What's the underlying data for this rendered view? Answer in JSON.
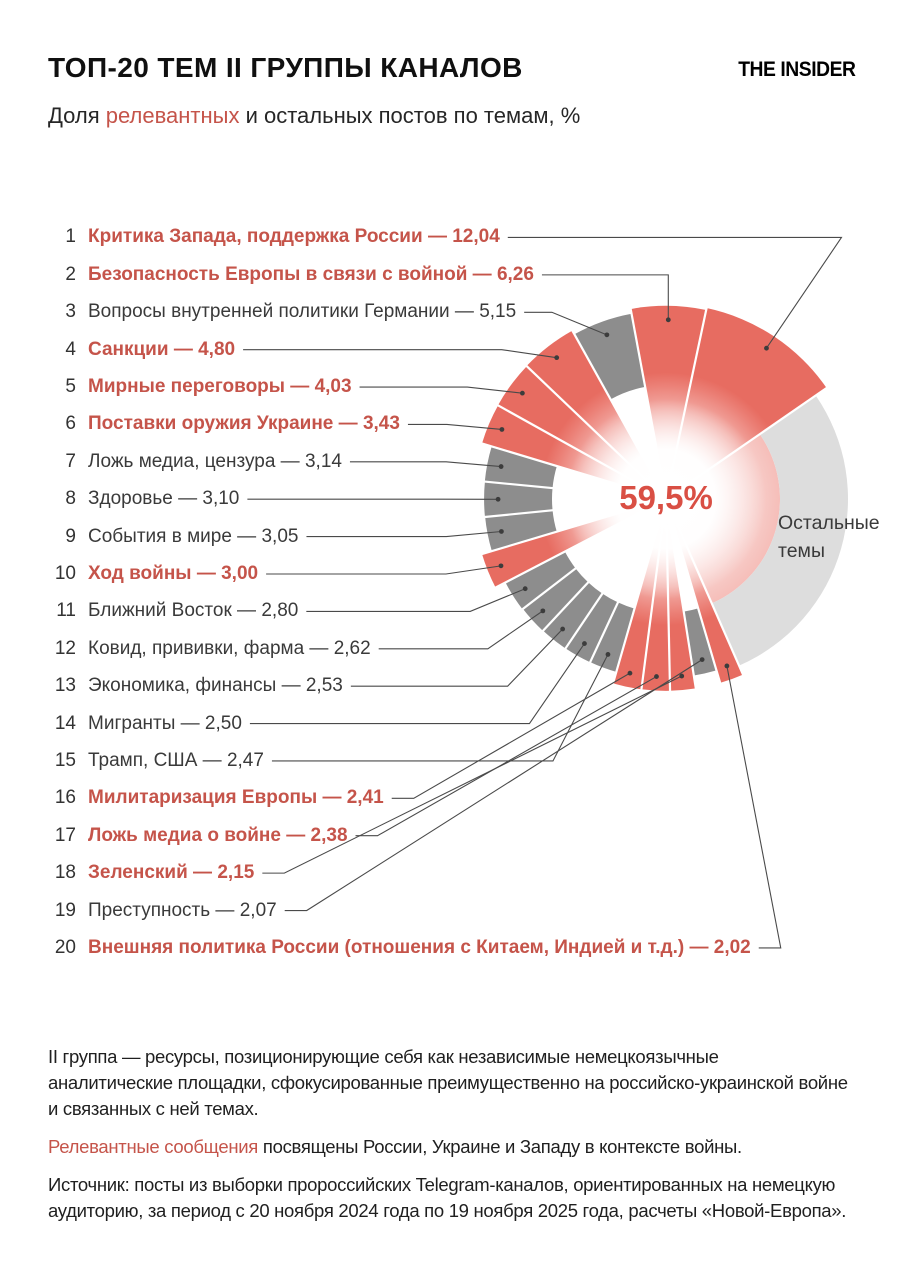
{
  "header": {
    "title": "ТОП-20 ТЕМ II ГРУППЫ КАНАЛОВ",
    "brand": "THE INSIDER",
    "subtitle_prefix": "Доля ",
    "subtitle_highlight": "релевантных",
    "subtitle_suffix": " и остальных постов по темам, %"
  },
  "chart_data": {
    "type": "pie",
    "variant": "rose-donut",
    "center_label": "59,5%",
    "other_label": "Остальные темы",
    "sep": " — ",
    "legend_note": "red = relevant topics, gray = other topics of top-20, light gray = remaining topics",
    "topics": [
      {
        "rank": "1",
        "label": "Критика Запада, поддержка России",
        "value": "12,04",
        "relevant": true
      },
      {
        "rank": "2",
        "label": "Безопасность Европы в связи с войной",
        "value": "6,26",
        "relevant": true
      },
      {
        "rank": "3",
        "label": "Вопросы внутренней политики Германии",
        "value": "5,15",
        "relevant": false
      },
      {
        "rank": "4",
        "label": "Санкции",
        "value": "4,80",
        "relevant": true
      },
      {
        "rank": "5",
        "label": "Мирные переговоры",
        "value": "4,03",
        "relevant": true
      },
      {
        "rank": "6",
        "label": "Поставки оружия Украине",
        "value": "3,43",
        "relevant": true
      },
      {
        "rank": "7",
        "label": "Ложь медиа, цензура",
        "value": "3,14",
        "relevant": false
      },
      {
        "rank": "8",
        "label": "Здоровье",
        "value": "3,10",
        "relevant": false
      },
      {
        "rank": "9",
        "label": "События в мире",
        "value": "3,05",
        "relevant": false
      },
      {
        "rank": "10",
        "label": "Ход войны",
        "value": "3,00",
        "relevant": true
      },
      {
        "rank": "11",
        "label": "Ближний Восток",
        "value": "2,80",
        "relevant": false
      },
      {
        "rank": "12",
        "label": "Ковид, прививки, фарма",
        "value": "2,62",
        "relevant": false
      },
      {
        "rank": "13",
        "label": "Экономика, финансы",
        "value": "2,53",
        "relevant": false
      },
      {
        "rank": "14",
        "label": "Мигранты",
        "value": "2,50",
        "relevant": false
      },
      {
        "rank": "15",
        "label": "Трамп, США",
        "value": "2,47",
        "relevant": false
      },
      {
        "rank": "16",
        "label": "Милитаризация Европы",
        "value": "2,41",
        "relevant": true
      },
      {
        "rank": "17",
        "label": "Ложь медиа о войне",
        "value": "2,38",
        "relevant": true
      },
      {
        "rank": "18",
        "label": "Зеленский",
        "value": "2,15",
        "relevant": true
      },
      {
        "rank": "19",
        "label": "Преступность",
        "value": "2,07",
        "relevant": false
      },
      {
        "rank": "20",
        "label": "Внешняя политика России (отношения с Китаем, Индией и т.д.)",
        "value": "2,02",
        "relevant": true
      }
    ]
  },
  "footer": {
    "para1": "II группа — ресурсы, позиционирующие себя как независимые немецкоязычные аналитические площадки, сфокусированные преимущественно на российско-украинской войне и связанных с ней темах.",
    "para2_highlight": "Релевантные сообщения",
    "para2_rest": " посвящены России, Украине и Западу в контексте войны.",
    "source": "Источник: посты из выборки пророссийских Telegram-каналов, ориентированных на немецкую аудиторию, за период с 20 ноября 2024 года по 19 ноября 2025 года, расчеты «Новой-Европа»."
  },
  "colors": {
    "relevant": "#E76C61",
    "non_relevant": "#8D8D8D",
    "other": "#DDDDDD",
    "accent_text": "#C5544A",
    "center_text": "#D94F44",
    "leader_line": "#4a4a4a"
  }
}
